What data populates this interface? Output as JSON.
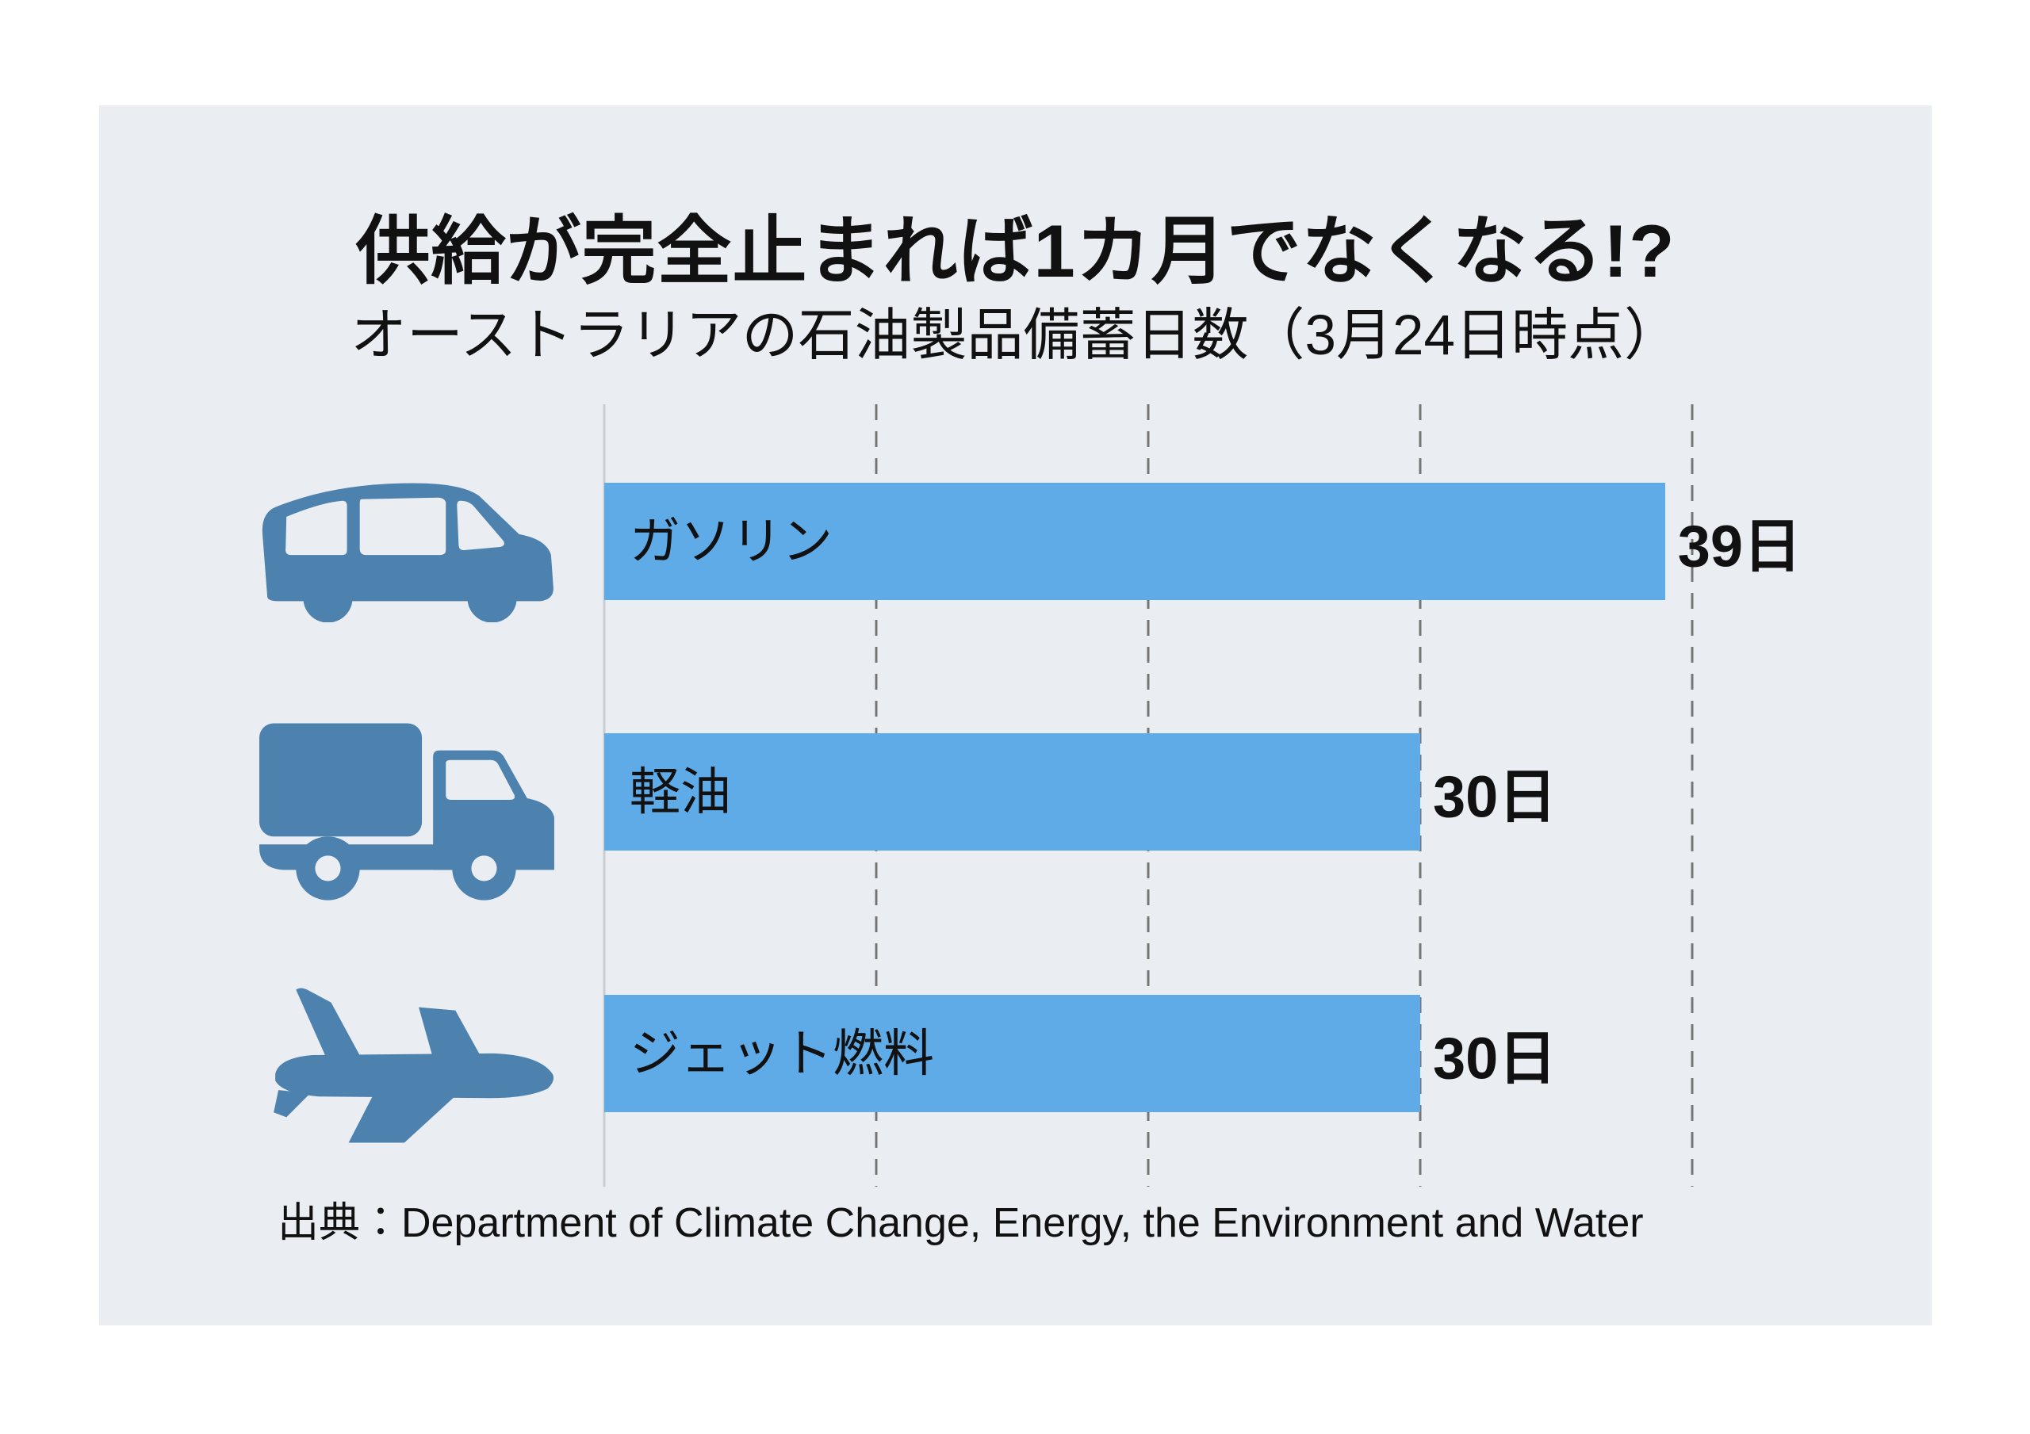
{
  "header": {
    "title": "供給が完全止まれば1カ月でなくなる!?",
    "subtitle": "オーストラリアの石油製品備蓄日数（3月24日時点）"
  },
  "chart_data": {
    "type": "bar",
    "orientation": "horizontal",
    "title": "供給が完全止まれば1カ月でなくなる!?",
    "subtitle": "オーストラリアの石油製品備蓄日数（3月24日時点）",
    "categories": [
      "ガソリン",
      "軽油",
      "ジェット燃料"
    ],
    "values": [
      39,
      30,
      30
    ],
    "unit": "日",
    "value_labels": [
      "39日",
      "30日",
      "30日"
    ],
    "row_icons": [
      "car",
      "truck",
      "airplane"
    ],
    "xlim": [
      0,
      40
    ],
    "xticks": [
      0,
      10,
      20,
      30,
      40
    ],
    "grid": "vertical-dashed",
    "legend": "none"
  },
  "source": {
    "label": "出典：Department of Climate Change, Energy, the Environment and Water"
  },
  "colors": {
    "page_background": "#ffffff",
    "panel_background": "#eaeef2",
    "bar": "#5fabe8",
    "icon": "#4d81ae",
    "text": "#111111",
    "gridline_dash": "#767676",
    "axis_line": "#c9ced3"
  }
}
